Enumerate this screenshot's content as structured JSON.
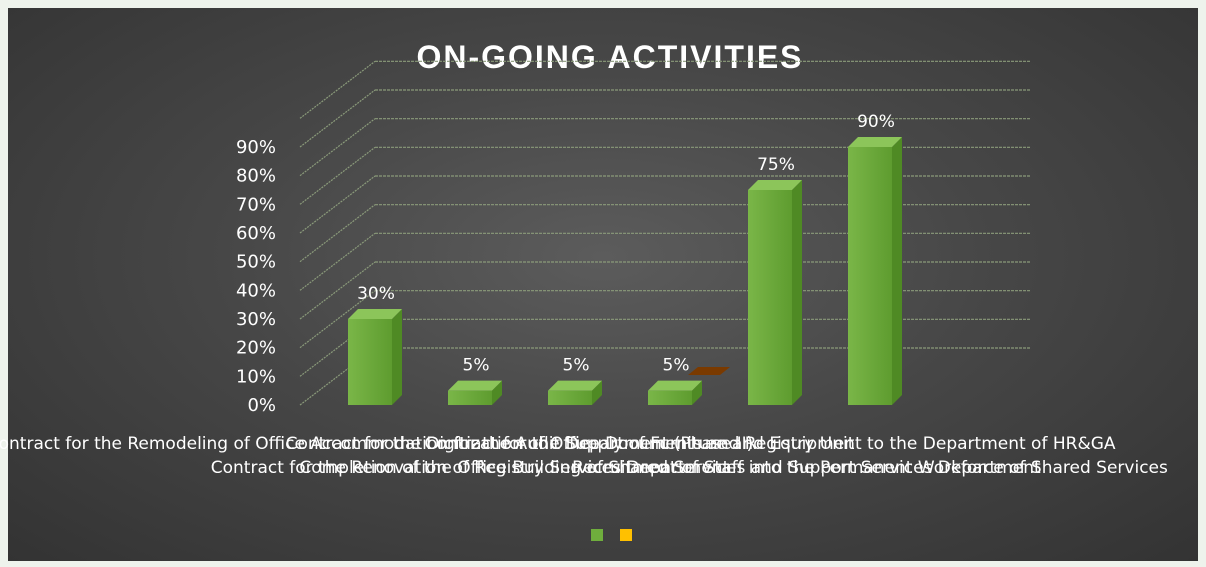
{
  "colors": {
    "series_1": "#6fae3d",
    "series_2": "#ffc000"
  },
  "chart_data": {
    "type": "bar",
    "title": "ON-GOING ACTIVITIES",
    "xlabel": "",
    "ylabel": "",
    "ylim": [
      0,
      0.9
    ],
    "yticks": [
      "0%",
      "10%",
      "20%",
      "30%",
      "40%",
      "50%",
      "60%",
      "70%",
      "80%",
      "90%"
    ],
    "grid": true,
    "legend_placement": "bottom",
    "categories": [
      "Contract for the Remodeling of Office Accommodation for the Audit Department (Phase II)",
      "Contract for the Renovation of Registry Services Department",
      "Contract for the Digitization of Office Documents and Registry Unit",
      "Completion of the Office Building of Shared Services and Support Services Department",
      "Contract for the Supply of Furniture and Equipment to the Department of HR&GA",
      "Recruitment of Staff into the Permanent Workforce of Shared Services"
    ],
    "series": [
      {
        "values": [
          0.3,
          0.05,
          0.05,
          0.05,
          0.75,
          0.9
        ]
      },
      {
        "values": [
          null,
          null,
          null,
          0.0,
          null,
          null
        ]
      }
    ],
    "data_labels": [
      "30%",
      "5%",
      "5%",
      "5%",
      "75%",
      "90%"
    ]
  }
}
